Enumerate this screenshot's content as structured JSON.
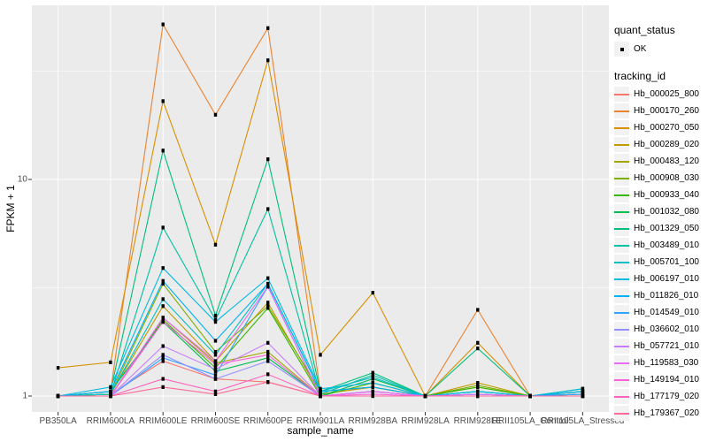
{
  "figure": {
    "background": "#FFFFFF",
    "panel_background": "#EBEBEB",
    "gridline_color": "#FFFFFF",
    "tick_mark_color": "#333333",
    "tick_label_color": "#4D4D4D",
    "point_color": "#000000"
  },
  "axes": {
    "x_title": "sample_name",
    "y_title": "FPKM + 1",
    "y_tick_labels": [
      "1",
      "10"
    ]
  },
  "legend": {
    "quant_title": "quant_status",
    "quant_items": [
      {
        "label": "OK",
        "marker": "black-point"
      }
    ],
    "tracking_title": "tracking_id"
  },
  "chart_data": {
    "type": "line",
    "xlabel": "sample_name",
    "ylabel": "FPKM + 1",
    "yscale": "log10",
    "ylim": [
      0.85,
      63
    ],
    "y_major_ticks": [
      1,
      10
    ],
    "y_minor_ticks": [
      3.162,
      31.62
    ],
    "grid": "on",
    "legend_position": "right",
    "marker": "black-square",
    "x": [
      "PB350LA",
      "RRIM600LA",
      "RRIM600LE",
      "RRIM600SE",
      "RRIM600PE",
      "RRIM901LA",
      "RRIM928BA",
      "RRIM928LA",
      "RRIM928LE",
      "RRII105LA_Control",
      "RRII105LA_Stressed"
    ],
    "series": [
      {
        "name": "Hb_000025_800",
        "color": "#F8766D",
        "values": [
          1.0,
          1.02,
          1.45,
          1.2,
          1.16,
          1.0,
          1.05,
          1.0,
          1.0,
          1.0,
          1.0
        ]
      },
      {
        "name": "Hb_000170_260",
        "color": "#EA8331",
        "values": [
          1.0,
          1.05,
          52.0,
          19.9,
          50.0,
          1.05,
          1.1,
          1.0,
          2.5,
          1.0,
          1.02
        ]
      },
      {
        "name": "Hb_000270_050",
        "color": "#D89000",
        "values": [
          1.35,
          1.43,
          23.0,
          5.0,
          35.5,
          1.55,
          3.0,
          1.0,
          1.76,
          1.0,
          1.05
        ]
      },
      {
        "name": "Hb_000289_020",
        "color": "#C09B00",
        "values": [
          1.0,
          1.02,
          2.6,
          1.45,
          2.7,
          1.02,
          1.1,
          1.0,
          1.15,
          1.0,
          1.02
        ]
      },
      {
        "name": "Hb_000483_120",
        "color": "#A3A500",
        "values": [
          1.0,
          1.0,
          2.3,
          1.42,
          1.6,
          1.0,
          1.05,
          1.0,
          1.1,
          1.0,
          1.0
        ]
      },
      {
        "name": "Hb_000908_030",
        "color": "#7CAE00",
        "values": [
          1.0,
          1.02,
          3.3,
          1.6,
          2.6,
          1.05,
          1.1,
          1.0,
          1.12,
          1.0,
          1.05
        ]
      },
      {
        "name": "Hb_000933_040",
        "color": "#39B600",
        "values": [
          1.0,
          1.0,
          2.25,
          1.35,
          2.55,
          1.0,
          1.15,
          1.0,
          1.1,
          1.0,
          1.05
        ]
      },
      {
        "name": "Hb_001032_080",
        "color": "#00BB4E",
        "values": [
          1.0,
          1.05,
          2.2,
          1.3,
          1.5,
          1.0,
          1.2,
          1.0,
          1.05,
          1.0,
          1.08
        ]
      },
      {
        "name": "Hb_001329_050",
        "color": "#00BF7D",
        "values": [
          1.0,
          1.05,
          13.6,
          2.35,
          12.4,
          1.05,
          1.28,
          1.0,
          1.66,
          1.0,
          1.05
        ]
      },
      {
        "name": "Hb_003489_010",
        "color": "#00C1A3",
        "values": [
          1.0,
          1.02,
          6.0,
          2.25,
          7.3,
          1.02,
          1.25,
          1.0,
          1.05,
          1.0,
          1.02
        ]
      },
      {
        "name": "Hb_005701_100",
        "color": "#00BFC4",
        "values": [
          1.0,
          1.02,
          2.8,
          1.55,
          3.3,
          1.05,
          1.22,
          1.0,
          1.05,
          1.0,
          1.05
        ]
      },
      {
        "name": "Hb_006197_010",
        "color": "#00BAE0",
        "values": [
          1.0,
          1.1,
          3.9,
          2.2,
          3.5,
          1.08,
          1.15,
          1.0,
          1.05,
          1.0,
          1.08
        ]
      },
      {
        "name": "Hb_011826_010",
        "color": "#00B0F6",
        "values": [
          1.0,
          1.05,
          3.4,
          1.8,
          3.3,
          1.05,
          1.1,
          1.0,
          1.02,
          1.0,
          1.05
        ]
      },
      {
        "name": "Hb_014549_010",
        "color": "#35A2FF",
        "values": [
          1.0,
          1.0,
          1.5,
          1.25,
          3.2,
          1.0,
          1.05,
          1.0,
          1.02,
          1.0,
          1.02
        ]
      },
      {
        "name": "Hb_036602_010",
        "color": "#9590FF",
        "values": [
          1.0,
          1.0,
          1.55,
          1.2,
          1.45,
          1.0,
          1.05,
          1.0,
          1.0,
          1.0,
          1.0
        ]
      },
      {
        "name": "Hb_057721_010",
        "color": "#C77CFF",
        "values": [
          1.0,
          1.0,
          1.7,
          1.33,
          1.76,
          1.0,
          1.05,
          1.0,
          1.0,
          1.0,
          1.0
        ]
      },
      {
        "name": "Hb_119583_030",
        "color": "#E76BF3",
        "values": [
          1.0,
          1.0,
          2.3,
          1.45,
          3.2,
          1.0,
          1.05,
          1.0,
          1.02,
          1.0,
          1.0
        ]
      },
      {
        "name": "Hb_149194_010",
        "color": "#FA62DB",
        "values": [
          1.0,
          1.0,
          2.2,
          1.4,
          1.55,
          1.0,
          1.02,
          1.0,
          1.0,
          1.0,
          1.0
        ]
      },
      {
        "name": "Hb_177179_020",
        "color": "#FF62BC",
        "values": [
          1.0,
          1.0,
          1.2,
          1.05,
          1.26,
          1.0,
          1.0,
          1.0,
          1.0,
          1.0,
          1.0
        ]
      },
      {
        "name": "Hb_179367_020",
        "color": "#FF6A98",
        "values": [
          1.0,
          1.0,
          1.1,
          1.02,
          1.16,
          1.0,
          1.0,
          1.0,
          1.0,
          1.0,
          1.0
        ]
      }
    ]
  }
}
